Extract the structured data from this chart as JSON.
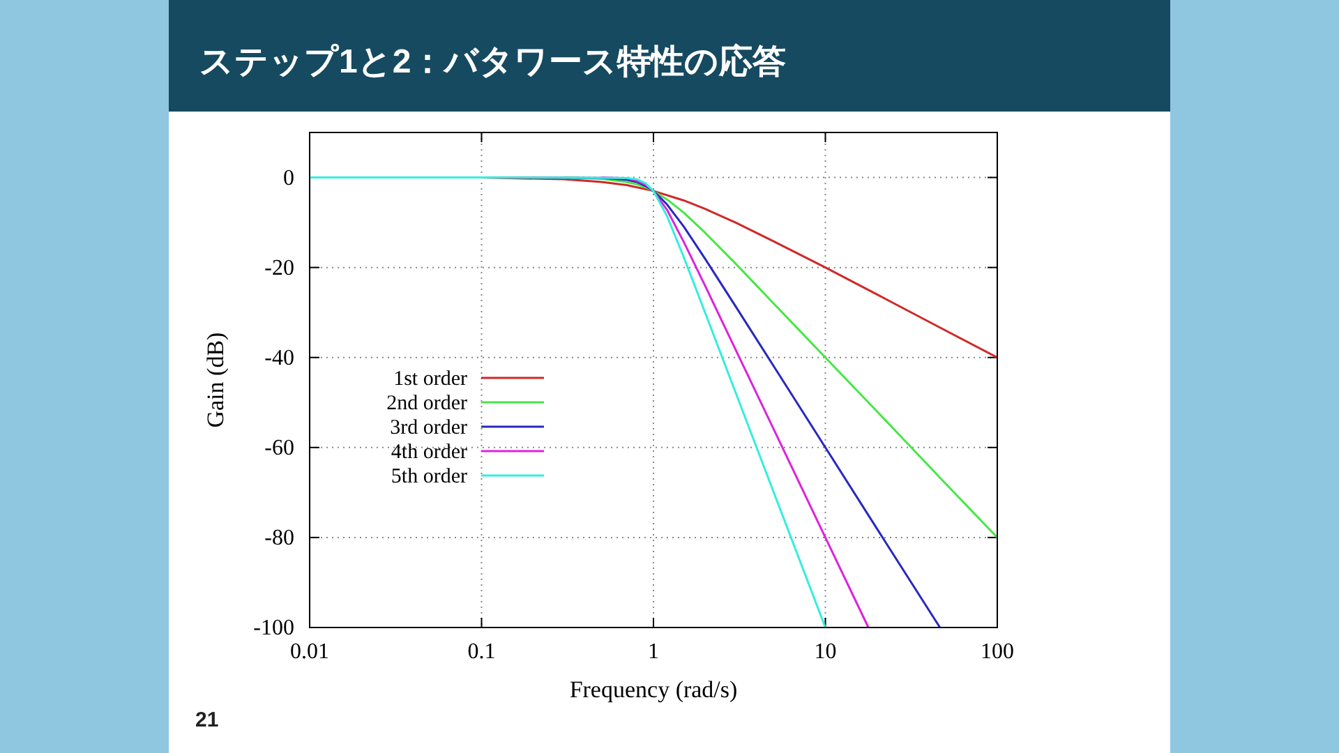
{
  "chart_data": {
    "type": "line",
    "title": "ステップ1と2：バタワース特性の応答",
    "xlabel": "Frequency (rad/s)",
    "ylabel": "Gain (dB)",
    "log": "x",
    "xlim": [
      0.01,
      100
    ],
    "ylim": [
      -100,
      10
    ],
    "xticks": [
      0.01,
      0.1,
      1,
      10,
      100
    ],
    "yticks": [
      -100,
      -80,
      -60,
      -40,
      -20,
      0
    ],
    "grid": true,
    "legend": "left",
    "annotations": [
      "21"
    ],
    "series": [
      {
        "name": "1st order",
        "color": "#d02828",
        "x": [
          0.01,
          0.1,
          0.3,
          0.5,
          0.7,
          1,
          1.5,
          2,
          3,
          5,
          10,
          20,
          50,
          100
        ],
        "values": [
          0,
          0,
          -0.4,
          -1,
          -1.7,
          -3,
          -5.1,
          -7,
          -10,
          -14.2,
          -20,
          -26,
          -34,
          -40
        ]
      },
      {
        "name": "2nd order",
        "color": "#44e844",
        "x": [
          0.3,
          0.5,
          0.7,
          0.8,
          0.9,
          1,
          1.2,
          1.5,
          2,
          3,
          5,
          10,
          20,
          50,
          100
        ],
        "values": [
          0,
          -0.3,
          -1,
          -1.5,
          -2.2,
          -3,
          -4.9,
          -7.8,
          -12.3,
          -19.1,
          -28,
          -40,
          -52,
          -68,
          -80
        ]
      },
      {
        "name": "3rd order",
        "color": "#2828c0",
        "x": [
          0.01,
          0.1,
          0.5,
          0.7,
          0.8,
          0.9,
          1,
          1.2,
          1.5,
          2,
          3,
          5,
          10,
          20,
          46.4
        ],
        "values": [
          0,
          0,
          -0.1,
          -0.5,
          -1,
          -1.9,
          -3,
          -6,
          -10.9,
          -18.1,
          -28.6,
          -41.9,
          -60,
          -78.1,
          -100
        ]
      },
      {
        "name": "4th order",
        "color": "#dd22dd",
        "x": [
          0.5,
          0.7,
          0.8,
          0.9,
          1,
          1.2,
          1.5,
          2,
          3,
          5,
          10,
          17.8
        ],
        "values": [
          0,
          -0.2,
          -0.7,
          -1.6,
          -3,
          -7.2,
          -14.3,
          -24.1,
          -38.2,
          -55.9,
          -80,
          -100
        ]
      },
      {
        "name": "5th order",
        "color": "#33eedd",
        "x": [
          0.01,
          0.1,
          0.7,
          0.8,
          0.9,
          1,
          1.2,
          1.5,
          2,
          3,
          5,
          7,
          10
        ],
        "values": [
          0,
          0,
          -0.1,
          -0.4,
          -1.3,
          -3,
          -8.6,
          -17.7,
          -30.1,
          -47.7,
          -69.9,
          -84.5,
          -100
        ]
      }
    ]
  }
}
